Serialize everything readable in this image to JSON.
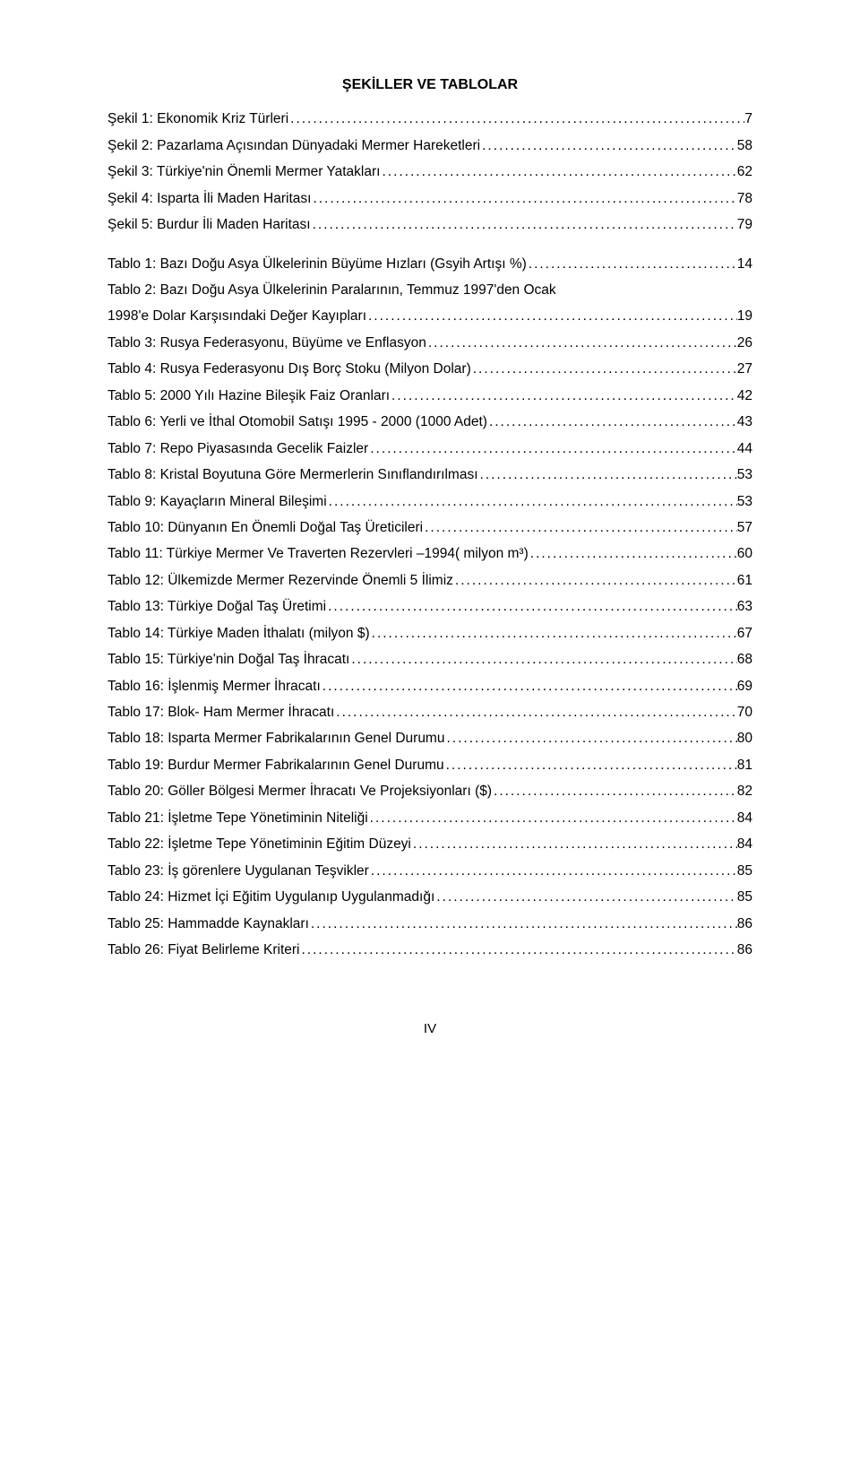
{
  "title": "ŞEKİLLER VE TABLOLAR",
  "sekiller": [
    {
      "label": "Şekil 1: Ekonomik Kriz Türleri",
      "page": "7"
    },
    {
      "label": "Şekil 2: Pazarlama Açısından Dünyadaki Mermer Hareketleri",
      "page": "58"
    },
    {
      "label": "Şekil 3: Türkiye'nin Önemli Mermer Yatakları",
      "page": "62"
    },
    {
      "label": "Şekil 4: Isparta İli Maden Haritası",
      "page": "78"
    },
    {
      "label": "Şekil 5: Burdur İli Maden Haritası",
      "page": "79"
    }
  ],
  "tablolar": [
    {
      "label": "Tablo 1: Bazı Doğu Asya Ülkelerinin Büyüme Hızları (Gsyih Artışı %)",
      "page": "14"
    },
    {
      "label_line1": "Tablo 2: Bazı Doğu Asya Ülkelerinin Paralarının, Temmuz 1997'den Ocak",
      "label_line2": "1998'e Dolar Karşısındaki Değer Kayıpları",
      "page": "19",
      "multiline": true
    },
    {
      "label": "Tablo 3: Rusya Federasyonu, Büyüme ve Enflasyon",
      "page": "26"
    },
    {
      "label": "Tablo 4: Rusya Federasyonu Dış Borç Stoku (Milyon Dolar)",
      "page": "27"
    },
    {
      "label": "Tablo 5: 2000 Yılı Hazine Bileşik Faiz Oranları",
      "page": "42"
    },
    {
      "label": "Tablo 6: Yerli ve İthal Otomobil Satışı 1995 - 2000 (1000 Adet)",
      "page": "43"
    },
    {
      "label": "Tablo 7: Repo Piyasasında Gecelik Faizler ",
      "page": "44"
    },
    {
      "label": "Tablo 8: Kristal Boyutuna Göre Mermerlerin Sınıflandırılması",
      "page": "53"
    },
    {
      "label": "Tablo 9: Kayaçların Mineral Bileşimi",
      "page": "53"
    },
    {
      "label": "Tablo 10: Dünyanın En Önemli Doğal Taş Üreticileri",
      "page": "57"
    },
    {
      "label": "Tablo 11:   Türkiye Mermer Ve Traverten Rezervleri –1994( milyon m³)",
      "page": "60"
    },
    {
      "label": "Tablo 12: Ülkemizde Mermer Rezervinde Önemli 5 İlimiz",
      "page": "61"
    },
    {
      "label": "Tablo 13: Türkiye Doğal Taş Üretimi",
      "page": "63"
    },
    {
      "label": "Tablo 14:  Türkiye Maden İthalatı (milyon $)",
      "page": "67"
    },
    {
      "label": "Tablo 15: Türkiye'nin Doğal Taş İhracatı",
      "page": "68"
    },
    {
      "label": "Tablo 16:    İşlenmiş Mermer İhracatı",
      "page": "69"
    },
    {
      "label": "Tablo 17: Blok- Ham Mermer İhracatı",
      "page": "70"
    },
    {
      "label": "Tablo 18:  Isparta Mermer Fabrikalarının Genel Durumu",
      "page": "80"
    },
    {
      "label": "Tablo 19: Burdur Mermer Fabrikalarının Genel Durumu",
      "page": "81"
    },
    {
      "label": "Tablo 20:  Göller Bölgesi Mermer İhracatı Ve Projeksiyonları ($)",
      "page": "82"
    },
    {
      "label": "Tablo 21: İşletme Tepe Yönetiminin Niteliği",
      "page": "84"
    },
    {
      "label": "Tablo 22: İşletme Tepe Yönetiminin Eğitim Düzeyi",
      "page": "84"
    },
    {
      "label": "Tablo 23: İş görenlere Uygulanan Teşvikler",
      "page": "85"
    },
    {
      "label": "Tablo 24: Hizmet İçi Eğitim Uygulanıp Uygulanmadığı",
      "page": "85"
    },
    {
      "label": "Tablo 25: Hammadde Kaynakları",
      "page": "86"
    },
    {
      "label": "Tablo 26: Fiyat Belirleme Kriteri",
      "page": "86"
    }
  ],
  "page_footer": "IV"
}
